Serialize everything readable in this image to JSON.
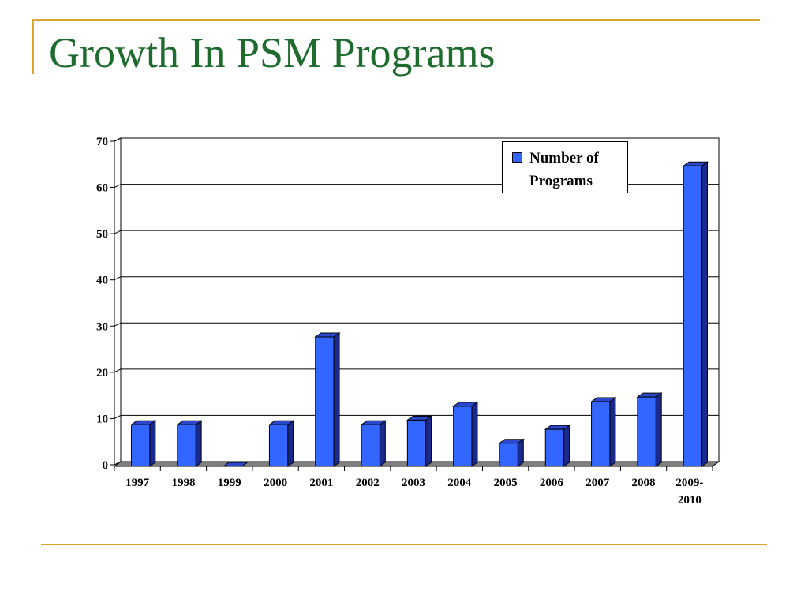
{
  "slide": {
    "title": "Growth In PSM Programs",
    "accent_color": "#d9a62e",
    "title_color": "#1e6b2e"
  },
  "chart_data": {
    "type": "bar",
    "title": "",
    "xlabel": "",
    "ylabel": "",
    "categories": [
      "1997",
      "1998",
      "1999",
      "2000",
      "2001",
      "2002",
      "2003",
      "2004",
      "2005",
      "2006",
      "2007",
      "2008",
      "2009-\n2010"
    ],
    "series": [
      {
        "name": "Number of Programs",
        "color": "#3366ff",
        "values": [
          9,
          9,
          0,
          9,
          28,
          9,
          10,
          13,
          5,
          8,
          14,
          15,
          65
        ]
      }
    ],
    "yticks": [
      0,
      10,
      20,
      30,
      40,
      50,
      60,
      70
    ],
    "ylim": [
      0,
      70
    ],
    "grid": true,
    "legend_position": "top-right",
    "legend_label": "Number of\nPrograms"
  }
}
